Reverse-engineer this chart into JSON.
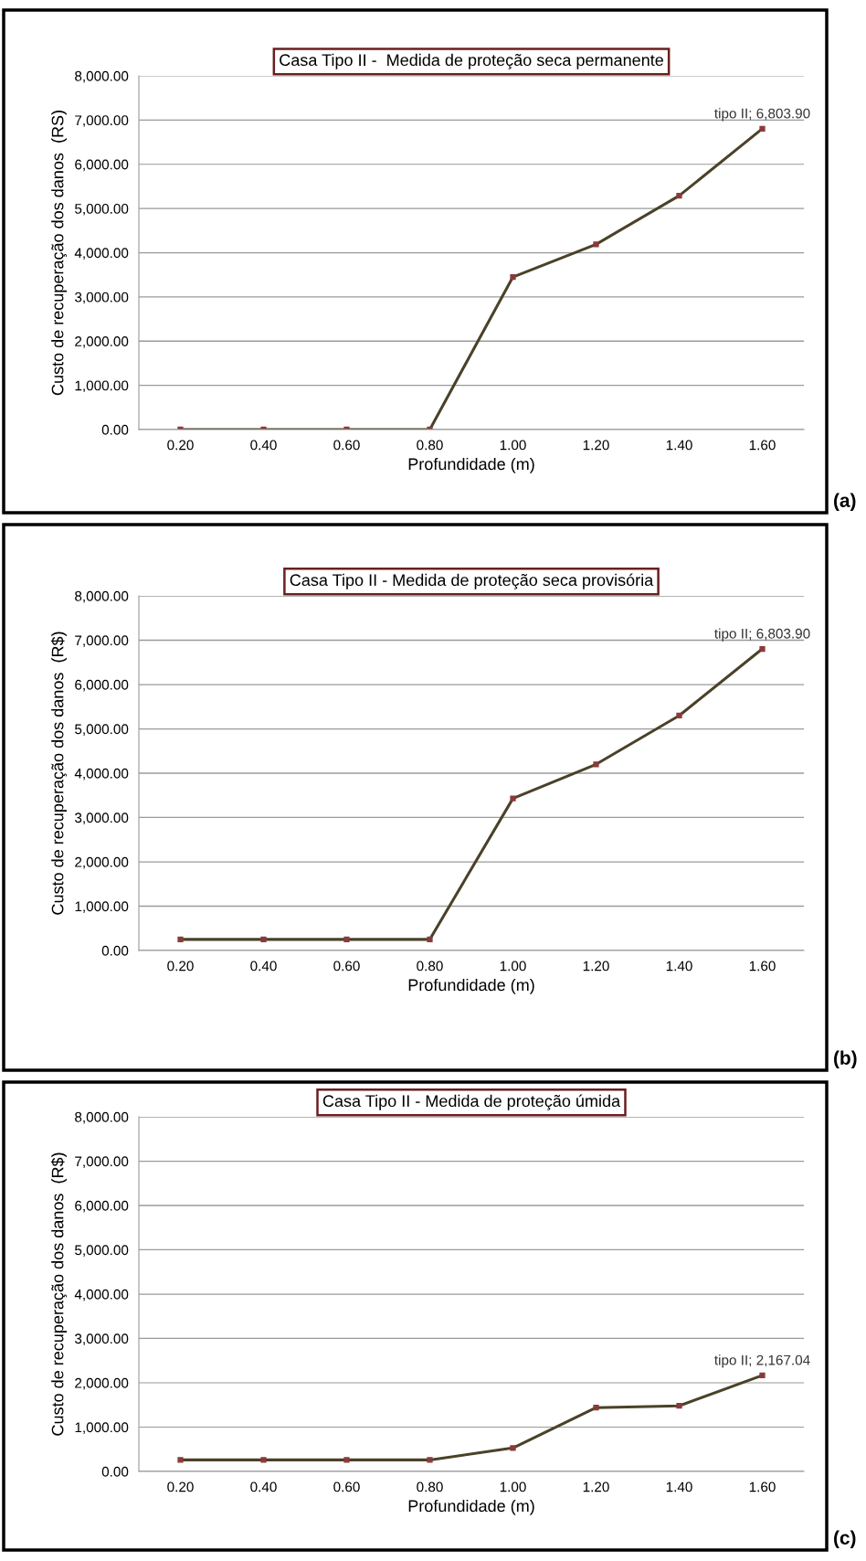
{
  "chart_data": [
    {
      "type": "line",
      "title": "Casa Tipo II -  Medida de proteção seca permanente",
      "xlabel": "Profundidade (m)",
      "ylabel": "Custo de recuperação dos danos  (RS)",
      "categories": [
        "0.20",
        "0.40",
        "0.60",
        "0.80",
        "1.00",
        "1.20",
        "1.40",
        "1.60"
      ],
      "series": [
        {
          "color": "#4a4228",
          "values": [
            0,
            0,
            0,
            0,
            3450,
            4190,
            5290,
            6803.9
          ]
        }
      ],
      "ylim": [
        0,
        8000
      ],
      "yticks": [
        {
          "value": 0,
          "label": "0.00"
        },
        {
          "value": 1000,
          "label": "1,000.00"
        },
        {
          "value": 2000,
          "label": "2,000.00"
        },
        {
          "value": 3000,
          "label": "3,000.00"
        },
        {
          "value": 4000,
          "label": "4,000.00"
        },
        {
          "value": 5000,
          "label": "5,000.00"
        },
        {
          "value": 6000,
          "label": "6,000.00"
        },
        {
          "value": 7000,
          "label": "7,000.00"
        },
        {
          "value": 8000,
          "label": "8,000.00"
        }
      ],
      "grid": "y",
      "marker": "square",
      "legend": false,
      "annotations": [
        {
          "text": "tipo II; 6,803.90",
          "x": "1.60",
          "y": 6803.9
        },
        "(a)"
      ]
    },
    {
      "type": "line",
      "title": "Casa Tipo II - Medida de proteção seca provisória",
      "xlabel": "Profundidade (m)",
      "ylabel": "Custo de recuperação dos danos  (R$)",
      "categories": [
        "0.20",
        "0.40",
        "0.60",
        "0.80",
        "1.00",
        "1.20",
        "1.40",
        "1.60"
      ],
      "series": [
        {
          "color": "#4a4228",
          "values": [
            250,
            250,
            250,
            250,
            3430,
            4200,
            5300,
            6803.9
          ]
        }
      ],
      "ylim": [
        0,
        8000
      ],
      "yticks": [
        {
          "value": 0,
          "label": "0.00"
        },
        {
          "value": 1000,
          "label": "1,000.00"
        },
        {
          "value": 2000,
          "label": "2,000.00"
        },
        {
          "value": 3000,
          "label": "3,000.00"
        },
        {
          "value": 4000,
          "label": "4,000.00"
        },
        {
          "value": 5000,
          "label": "5,000.00"
        },
        {
          "value": 6000,
          "label": "6,000.00"
        },
        {
          "value": 7000,
          "label": "7,000.00"
        },
        {
          "value": 8000,
          "label": "8,000.00"
        }
      ],
      "grid": "y",
      "marker": "square",
      "legend": false,
      "annotations": [
        {
          "text": "tipo II; 6,803.90",
          "x": "1.60",
          "y": 6803.9
        },
        "(b)"
      ]
    },
    {
      "type": "line",
      "title": "Casa Tipo II - Medida de proteção úmida",
      "xlabel": "Profundidade (m)",
      "ylabel": "Custo de recuperação dos danos  (R$)",
      "categories": [
        "0.20",
        "0.40",
        "0.60",
        "0.80",
        "1.00",
        "1.20",
        "1.40",
        "1.60"
      ],
      "series": [
        {
          "color": "#4a4228",
          "values": [
            260,
            260,
            260,
            260,
            530,
            1440,
            1480,
            2167.04
          ]
        }
      ],
      "ylim": [
        0,
        8000
      ],
      "yticks": [
        {
          "value": 0,
          "label": "0.00"
        },
        {
          "value": 1000,
          "label": "1,000.00"
        },
        {
          "value": 2000,
          "label": "2,000.00"
        },
        {
          "value": 3000,
          "label": "3,000.00"
        },
        {
          "value": 4000,
          "label": "4,000.00"
        },
        {
          "value": 5000,
          "label": "5,000.00"
        },
        {
          "value": 6000,
          "label": "6,000.00"
        },
        {
          "value": 7000,
          "label": "7,000.00"
        },
        {
          "value": 8000,
          "label": "8,000.00"
        }
      ],
      "grid": "y",
      "marker": "square",
      "legend": false,
      "annotations": [
        {
          "text": "tipo II; 2,167.04",
          "x": "1.60",
          "y": 2167.04
        },
        "(c)"
      ]
    }
  ]
}
